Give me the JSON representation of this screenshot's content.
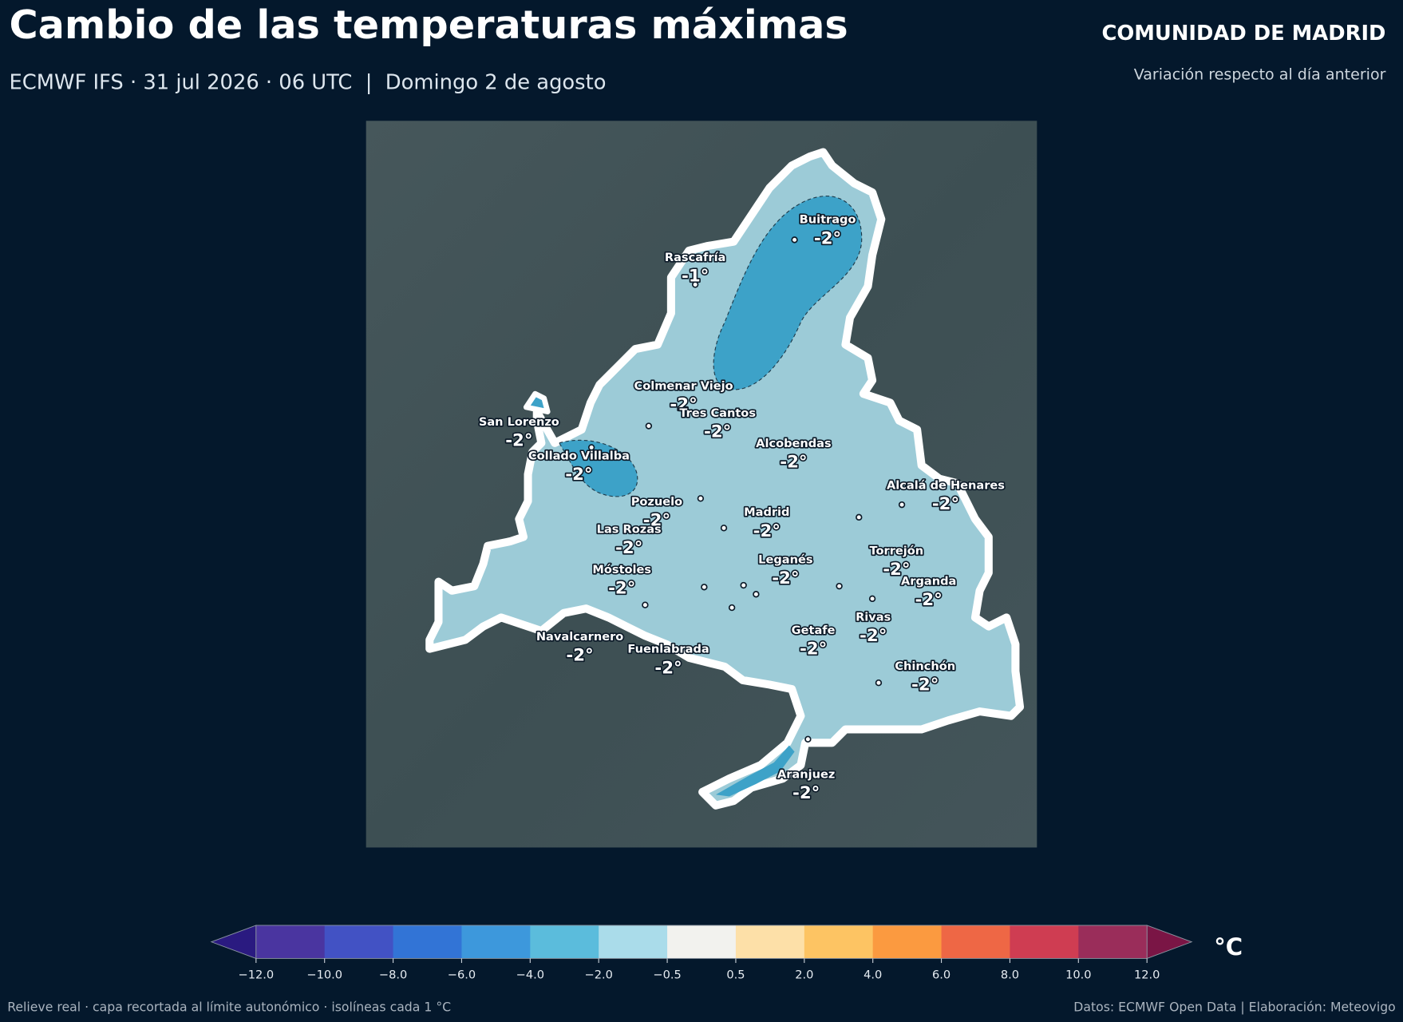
{
  "header": {
    "title": "Cambio de las temperaturas máximas",
    "subtitle": "ECMWF IFS · 31 jul 2026 · 06 UTC  |  Domingo 2 de agosto",
    "region": "COMUNIDAD DE MADRID",
    "description": "Variación respecto al día anterior"
  },
  "cities": [
    {
      "name": "Buitrago",
      "value": "-2°"
    },
    {
      "name": "Rascafría",
      "value": "-1°"
    },
    {
      "name": "Colmenar Viejo",
      "value": "-2°"
    },
    {
      "name": "Tres Cantos",
      "value": "-2°"
    },
    {
      "name": "San Lorenzo",
      "value": "-2°"
    },
    {
      "name": "Alcobendas",
      "value": "-2°"
    },
    {
      "name": "Collado Villalba",
      "value": "-2°"
    },
    {
      "name": "Alcalá de Henares",
      "value": "-2°"
    },
    {
      "name": "Pozuelo",
      "value": "-2°"
    },
    {
      "name": "Madrid",
      "value": "-2°"
    },
    {
      "name": "Las Rozas",
      "value": "-2°"
    },
    {
      "name": "Torrejón",
      "value": "-2°"
    },
    {
      "name": "Leganés",
      "value": "-2°"
    },
    {
      "name": "Móstoles",
      "value": "-2°"
    },
    {
      "name": "Arganda",
      "value": "-2°"
    },
    {
      "name": "Rivas",
      "value": "-2°"
    },
    {
      "name": "Getafe",
      "value": "-2°"
    },
    {
      "name": "Navalcarnero",
      "value": "-2°"
    },
    {
      "name": "Fuenlabrada",
      "value": "-2°"
    },
    {
      "name": "Chinchón",
      "value": "-2°"
    },
    {
      "name": "Aranjuez",
      "value": "-2°"
    }
  ],
  "colorbar": {
    "unit": "°C",
    "ticks": [
      {
        "value": -12,
        "label": "−12.0"
      },
      {
        "value": -10,
        "label": "−10.0"
      },
      {
        "value": -8,
        "label": "−8.0"
      },
      {
        "value": -6,
        "label": "−6.0"
      },
      {
        "value": -4,
        "label": "−4.0"
      },
      {
        "value": -2,
        "label": "−2.0"
      },
      {
        "value": -0.5,
        "label": "−0.5"
      },
      {
        "value": 0.5,
        "label": "0.5"
      },
      {
        "value": 2,
        "label": "2.0"
      },
      {
        "value": 4,
        "label": "4.0"
      },
      {
        "value": 6,
        "label": "6.0"
      },
      {
        "value": 8,
        "label": "8.0"
      },
      {
        "value": 10,
        "label": "10.0"
      },
      {
        "value": 12,
        "label": "12.0"
      }
    ],
    "under_color": "#2a1a80",
    "colors": [
      "#4a35a0",
      "#4252c4",
      "#3274d6",
      "#3d98dc",
      "#5bbcdc",
      "#aadcea",
      "#f2f2ee",
      "#fde0a8",
      "#fdc463",
      "#fb9a40",
      "#ee6745",
      "#cf3d52",
      "#9a2d5a"
    ],
    "over_color": "#7a1545"
  },
  "footer": {
    "left": "Relieve real · capa recortada al límite autonómico · isolíneas cada 1 °C",
    "right": "Datos: ECMWF Open Data | Elaboración: Meteovigo"
  }
}
